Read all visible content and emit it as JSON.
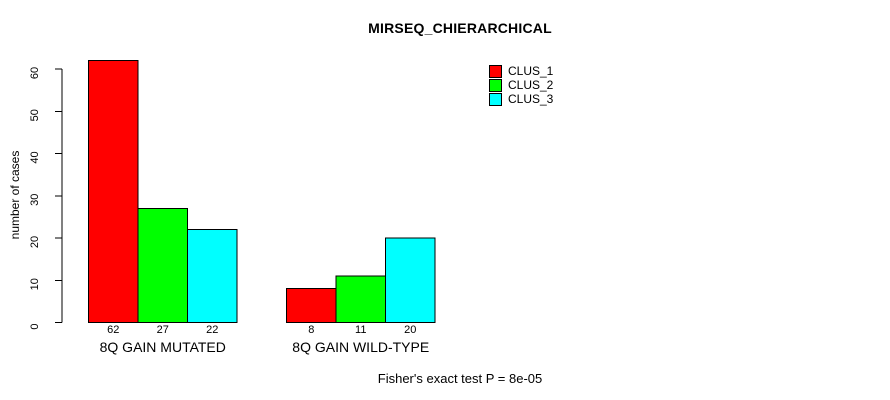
{
  "chart_data": {
    "type": "bar",
    "title": "MIRSEQ_CHIERARCHICAL",
    "ylabel": "number of cases",
    "xlabel": "",
    "ylim": [
      0,
      60
    ],
    "yticks": [
      0,
      10,
      20,
      30,
      40,
      50,
      60
    ],
    "categories": [
      "8Q GAIN MUTATED",
      "8Q GAIN WILD-TYPE"
    ],
    "series": [
      {
        "name": "CLUS_1",
        "color": "#FF0000",
        "values": [
          62,
          8
        ]
      },
      {
        "name": "CLUS_2",
        "color": "#00FF00",
        "values": [
          27,
          11
        ]
      },
      {
        "name": "CLUS_3",
        "color": "#00FFFF",
        "values": [
          22,
          20
        ]
      }
    ],
    "bar_value_labels": [
      [
        "62",
        "27",
        "22"
      ],
      [
        "8",
        "11",
        "20"
      ]
    ],
    "legend_position": "top-right",
    "grid": "off",
    "annotation": "Fisher's exact test P = 8e-05"
  }
}
